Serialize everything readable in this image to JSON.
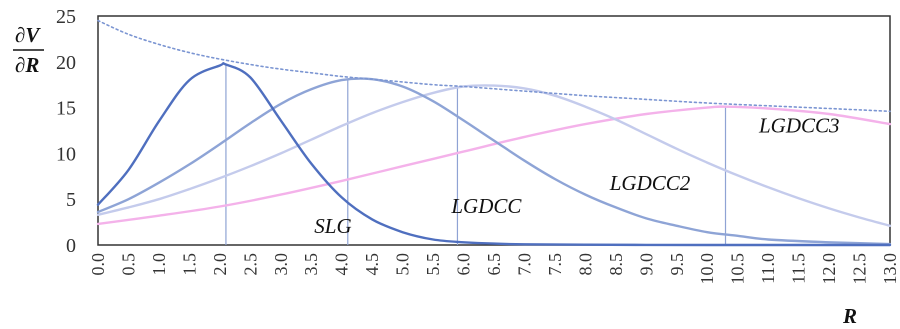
{
  "chart_data": {
    "type": "line",
    "ylabel_top": "∂V",
    "ylabel_bottom": "∂R",
    "xlabel": "R",
    "ylim": [
      0,
      25
    ],
    "xlim": [
      0.0,
      13.0
    ],
    "y_ticks": [
      "0",
      "5",
      "10",
      "15",
      "20",
      "25"
    ],
    "x_ticks": [
      "0.0",
      "0.5",
      "1.0",
      "1.5",
      "2.0",
      "2.5",
      "3.0",
      "3.5",
      "4.0",
      "4.5",
      "5.0",
      "5.5",
      "6.0",
      "6.5",
      "7.0",
      "7.5",
      "8.0",
      "8.5",
      "9.0",
      "9.5",
      "10.0",
      "10.5",
      "11.0",
      "11.5",
      "12.0",
      "12.5",
      "13.0"
    ],
    "grid": false,
    "legend": "none",
    "series": [
      {
        "name": "SLG",
        "color": "#4f6fbf",
        "x": [
          0.0,
          0.5,
          1.0,
          1.5,
          2.0,
          2.1,
          2.5,
          3.0,
          3.5,
          4.0,
          4.5,
          5.0,
          5.5,
          6.0,
          6.5,
          7.0,
          8.0,
          9.0,
          10.0,
          11.0,
          12.0,
          13.0
        ],
        "y": [
          4.4,
          8.2,
          13.5,
          18.0,
          19.6,
          19.7,
          18.3,
          13.6,
          8.9,
          5.2,
          2.8,
          1.4,
          0.6,
          0.3,
          0.15,
          0.08,
          0.03,
          0.01,
          0.0,
          0.0,
          0.0,
          0.0
        ]
      },
      {
        "name": "LGDCC",
        "color": "#8ea4d6",
        "x": [
          0.0,
          0.5,
          1.0,
          1.5,
          2.0,
          2.5,
          3.0,
          3.5,
          4.0,
          4.5,
          5.0,
          5.5,
          6.0,
          6.5,
          7.0,
          7.5,
          8.0,
          8.5,
          9.0,
          9.5,
          10.0,
          10.5,
          11.0,
          12.0,
          13.0
        ],
        "y": [
          3.6,
          5.0,
          6.8,
          8.8,
          11.0,
          13.3,
          15.4,
          17.0,
          18.0,
          18.1,
          17.3,
          15.7,
          13.6,
          11.4,
          9.2,
          7.2,
          5.5,
          4.1,
          2.9,
          2.1,
          1.4,
          1.0,
          0.6,
          0.3,
          0.1
        ]
      },
      {
        "name": "LGDCC2",
        "color": "#c4cbec",
        "x": [
          0.0,
          0.5,
          1.0,
          1.5,
          2.0,
          2.5,
          3.0,
          3.5,
          4.0,
          4.5,
          5.0,
          5.5,
          6.0,
          6.5,
          7.0,
          7.5,
          8.0,
          8.5,
          9.0,
          9.5,
          10.0,
          10.5,
          11.0,
          11.5,
          12.0,
          12.5,
          13.0
        ],
        "y": [
          3.3,
          4.1,
          5.0,
          6.1,
          7.3,
          8.6,
          10.0,
          11.5,
          13.0,
          14.4,
          15.6,
          16.6,
          17.3,
          17.4,
          17.1,
          16.3,
          15.1,
          13.7,
          12.1,
          10.5,
          9.0,
          7.6,
          6.3,
          5.1,
          4.0,
          3.0,
          2.1
        ]
      },
      {
        "name": "LGDCC3",
        "color": "#f4b2ea",
        "x": [
          0.0,
          1.0,
          2.0,
          3.0,
          4.0,
          5.0,
          6.0,
          7.0,
          8.0,
          9.0,
          10.0,
          10.3,
          11.0,
          12.0,
          13.0
        ],
        "y": [
          2.3,
          3.2,
          4.2,
          5.5,
          7.0,
          8.6,
          10.2,
          11.8,
          13.2,
          14.3,
          15.0,
          15.1,
          14.9,
          14.3,
          13.2
        ]
      },
      {
        "name": "",
        "color": "#7b95d2",
        "style": "dotted",
        "x": [
          0.0,
          0.5,
          1.0,
          1.5,
          2.0,
          2.5,
          3.0,
          3.5,
          4.0,
          4.5,
          5.0,
          5.5,
          6.0,
          7.0,
          8.0,
          9.0,
          10.0,
          11.0,
          12.0,
          13.0
        ],
        "y": [
          24.5,
          23.0,
          21.9,
          21.0,
          20.3,
          19.7,
          19.2,
          18.8,
          18.4,
          18.1,
          17.8,
          17.5,
          17.3,
          16.8,
          16.3,
          15.9,
          15.5,
          15.2,
          14.9,
          14.6
        ]
      }
    ],
    "peak_markers": [
      {
        "x": 2.1,
        "y": 19.7
      },
      {
        "x": 4.1,
        "y": 18.1
      },
      {
        "x": 5.9,
        "y": 17.4
      },
      {
        "x": 10.3,
        "y": 15.1
      }
    ],
    "annotations": [
      {
        "text": "SLG",
        "x": 3.55,
        "y": 1.3
      },
      {
        "text": "LGDCC",
        "x": 5.8,
        "y": 3.5
      },
      {
        "text": "LGDCC2",
        "x": 8.4,
        "y": 6.0
      },
      {
        "text": "LGDCC3",
        "x": 10.85,
        "y": 12.3
      }
    ]
  }
}
